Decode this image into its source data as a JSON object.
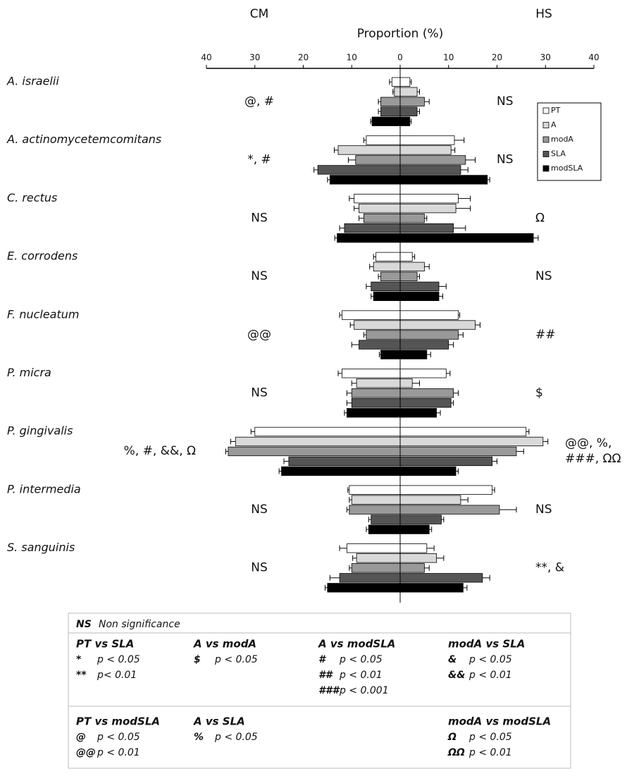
{
  "chart_data": {
    "type": "butterfly",
    "left_title": "CM",
    "right_title": "HS",
    "xlabel": "Proportion (%)",
    "xlim_left": [
      40,
      0
    ],
    "xticks_left": [
      40,
      30,
      20,
      10,
      0
    ],
    "xlim_right": [
      0,
      40
    ],
    "xticks_right": [
      10,
      20,
      30,
      40
    ],
    "categories": [
      "A. israelii",
      "A. actinomycetemcomitans",
      "C. rectus",
      "E. corrodens",
      "F. nucleatum",
      "P. micra",
      "P. gingivalis",
      "P. intermedia",
      "S. sanguinis"
    ],
    "series": [
      {
        "name": "PT",
        "color": "#ffffff",
        "values_left": [
          1.7,
          7,
          9.5,
          5,
          12,
          12,
          30,
          10.5,
          11
        ],
        "errors_left": [
          0.5,
          0.5,
          1,
          0.5,
          0.5,
          0.8,
          0.8,
          0.3,
          1.5
        ],
        "values_right": [
          2,
          11.2,
          12,
          2.5,
          12,
          9.5,
          26,
          19,
          5.5
        ],
        "errors_right": [
          0.3,
          2,
          2.5,
          0.5,
          0.3,
          0.8,
          0.6,
          0.5,
          1.5
        ]
      },
      {
        "name": "A",
        "color": "#d9d9d9",
        "values_left": [
          1.2,
          12.8,
          8.5,
          5.5,
          9.5,
          9,
          34,
          10,
          9
        ],
        "errors_left": [
          0.3,
          0.8,
          1,
          0.8,
          0.8,
          1,
          1,
          0.5,
          0.8
        ],
        "values_right": [
          3.5,
          10.5,
          11.5,
          5,
          15.5,
          2.5,
          29.5,
          12.5,
          7.5
        ],
        "errors_right": [
          0.5,
          0.8,
          3,
          1,
          1,
          1.5,
          1,
          1.5,
          1.5
        ]
      },
      {
        "name": "modA",
        "color": "#999999",
        "values_left": [
          4,
          9.2,
          7.5,
          4,
          7,
          10,
          35.5,
          10.5,
          10
        ],
        "errors_left": [
          0.5,
          1.5,
          1,
          0.5,
          0.5,
          1,
          0.5,
          0.5,
          0.5
        ],
        "values_right": [
          5,
          13.5,
          5,
          3.5,
          12,
          11,
          24,
          20.5,
          5
        ],
        "errors_right": [
          1,
          2,
          0.5,
          0.5,
          1,
          1,
          1.5,
          3.5,
          1
        ]
      },
      {
        "name": "SLA",
        "color": "#555555",
        "values_left": [
          4,
          17,
          11.5,
          6,
          8.5,
          10,
          23,
          6,
          12.5
        ],
        "errors_left": [
          0.5,
          0.8,
          1,
          1,
          1.5,
          1,
          1,
          0.5,
          2
        ],
        "values_right": [
          3.5,
          12.5,
          11,
          8,
          10,
          10.5,
          19,
          8.5,
          17
        ],
        "errors_right": [
          0.5,
          1.5,
          2.5,
          1.5,
          1,
          0.5,
          1,
          0.5,
          1.5
        ]
      },
      {
        "name": "modSLA",
        "color": "#000000",
        "values_left": [
          5.8,
          14.5,
          13,
          5.5,
          4,
          11,
          24.5,
          6.5,
          15
        ],
        "errors_left": [
          0.3,
          0.5,
          0.5,
          0.5,
          0.3,
          0.5,
          0.5,
          0.5,
          0.5
        ],
        "values_right": [
          2,
          18,
          27.5,
          8,
          5.5,
          7.5,
          11.5,
          6,
          13
        ],
        "errors_right": [
          0.3,
          0.5,
          1,
          0.8,
          0.8,
          0.8,
          0.5,
          0.5,
          0.8
        ]
      }
    ],
    "annotations_left": [
      "@, #",
      "*, #",
      "NS",
      "NS",
      "@@",
      "NS",
      "%, #, &&, Ω",
      "NS",
      "NS"
    ],
    "annotations_right": [
      [
        "NS"
      ],
      [
        "NS"
      ],
      [
        "Ω"
      ],
      [
        "NS"
      ],
      [
        "##"
      ],
      [
        "$"
      ],
      [
        "@@, %,",
        "###, ΩΩ"
      ],
      [
        "NS"
      ],
      [
        "**, &"
      ]
    ]
  },
  "key": {
    "ns": {
      "symbol": "NS",
      "text": "Non significance"
    },
    "rows": [
      [
        {
          "title": "PT vs SLA",
          "lines": [
            [
              "*",
              "p < 0.05"
            ],
            [
              "**",
              "p< 0.01"
            ]
          ]
        },
        {
          "title": "A vs modA",
          "lines": [
            [
              "$",
              "p < 0.05"
            ]
          ]
        },
        {
          "title": "A vs modSLA",
          "lines": [
            [
              "#",
              "p < 0.05"
            ],
            [
              "##",
              "p < 0.01"
            ],
            [
              "###",
              "p < 0.001"
            ]
          ]
        },
        {
          "title": "modA vs SLA",
          "lines": [
            [
              "&",
              "p < 0.05"
            ],
            [
              "&&",
              "p < 0.01"
            ]
          ]
        }
      ],
      [
        {
          "title": "PT vs modSLA",
          "lines": [
            [
              "@",
              "p < 0.05"
            ],
            [
              "@@",
              "p < 0.01"
            ]
          ]
        },
        {
          "title": "A vs SLA",
          "lines": [
            [
              "%",
              "p < 0.05"
            ]
          ]
        },
        null,
        {
          "title": "modA vs modSLA",
          "lines": [
            [
              "Ω",
              "p < 0.05"
            ],
            [
              "ΩΩ",
              "p < 0.01"
            ]
          ]
        }
      ]
    ]
  }
}
